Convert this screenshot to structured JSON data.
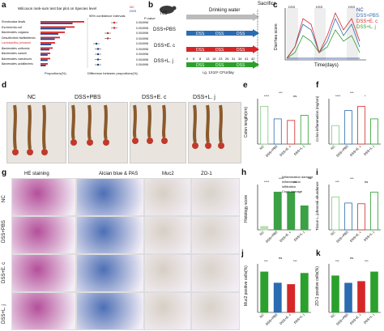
{
  "panel_labels": {
    "a": "a",
    "b": "b",
    "c": "c",
    "d": "d",
    "e": "e",
    "f": "f",
    "g": "g",
    "h": "h",
    "i": "i",
    "j": "j",
    "k": "k"
  },
  "panel_a": {
    "title": "Wilcoxon rank-sum test bar plot on Species level",
    "ci_title": "95% confidence intervals",
    "legend": [
      "NC",
      "DSS"
    ],
    "species": [
      "Romboutsia ilealis",
      "Escherichia coli",
      "Bacteroides vulgatus",
      "Desulfovibrio fairfieldensis",
      "Lactobacillus johnsonii",
      "Bacteroides uniformis",
      "Bacteroides sartorii",
      "Bacteroides caecimuris",
      "Bacteroides acidifaciens"
    ],
    "highlight_color": "#d62728",
    "xlabel_left": "Proportions(%)",
    "xlabel_right": "Difference between proportions(%)",
    "pvalue_label": "P-value",
    "pvalues": [
      "0.004998",
      "0.004998",
      "0.004998",
      "0.004998",
      "0.004998",
      "0.004998",
      "0.004998",
      "0.004998",
      "0.004998"
    ]
  },
  "panel_b": {
    "groups": [
      "NC",
      "DSS+PBS",
      "DSS+E. c",
      "DSS+L. j"
    ],
    "drinking": "Drinking water",
    "sacrifice": "Sacrifice",
    "dss_label": "DSS",
    "ticks": [
      "0",
      "5",
      "8",
      "13",
      "18",
      "23",
      "26",
      "31",
      "34",
      "41",
      "42"
    ],
    "gavage": "i.g. 1X10⁹ CFU/day"
  },
  "panel_c": {
    "ylabel": "Diarrhea score",
    "xlabel": "Time(days)",
    "dss_bands": [
      "DSS",
      "DSS",
      "DSS"
    ],
    "legend": [
      "NC",
      "DSS+PBS",
      "DSS+E. c",
      "DSS+L. j"
    ],
    "colors": [
      "#1f3f8f",
      "#2b6cb0",
      "#d62728",
      "#2ca02c"
    ]
  },
  "panel_d": {
    "labels": [
      "NC",
      "DSS+PBS",
      "DSS+E. c",
      "DSS+L. j"
    ]
  },
  "panel_e": {
    "ylabel": "Colon length(cm)",
    "categories": [
      "NC",
      "DSS+PBS",
      "DSS+E. c",
      "DSS+L. j"
    ],
    "values": [
      9.6,
      6.4,
      6.0,
      7.3
    ],
    "ylim": [
      0,
      10
    ],
    "sig": [
      "****",
      "***",
      "ns"
    ]
  },
  "panel_f": {
    "ylabel": "Colon inflammation (mg/cm)",
    "categories": [
      "NC",
      "DSS+PBS",
      "DSS+E. c",
      "DSS+L. j"
    ],
    "values": [
      22,
      40,
      45,
      30
    ],
    "ylim": [
      20,
      50
    ],
    "sig": [
      "****",
      "***",
      "*"
    ]
  },
  "panel_g": {
    "columns": [
      "HE staining",
      "Alcian blue & PAS",
      "Muc2",
      "ZO-1"
    ],
    "rows": [
      "NC",
      "DSS+PBS",
      "DSS+E. c",
      "DSS+L. j"
    ]
  },
  "panel_h": {
    "ylabel": "Histology score",
    "categories": [
      "NC",
      "DSS+PBS",
      "DSS+E. c",
      "DSS+L. j"
    ],
    "values": [
      1,
      11,
      11,
      7
    ],
    "legend": [
      "Inflammation damage",
      "Inflammation infiltration",
      "Crypt damage"
    ],
    "sig": [
      "****",
      "****",
      "ns",
      "***"
    ]
  },
  "panel_i": {
    "ylabel": "Tissue L. johnsonii abundance",
    "categories": [
      "NC",
      "DSS+PBS",
      "DSS+E. c",
      "DSS+L. j"
    ],
    "values": [
      4.8,
      3.9,
      3.8,
      5.5
    ],
    "sig": [
      "***",
      "***",
      "ns"
    ]
  },
  "panel_j": {
    "ylabel": "Muc2 positive cells(%)",
    "categories": [
      "NC",
      "DSS+PBS",
      "DSS+E. c",
      "DSS+L. j"
    ],
    "values": [
      58,
      42,
      40,
      56
    ],
    "sig": [
      "***",
      "ns",
      "***"
    ]
  },
  "panel_k": {
    "ylabel": "ZO-1 positive cells(%)",
    "categories": [
      "NC",
      "DSS+PBS",
      "DSS+E. c",
      "DSS+L. j"
    ],
    "values": [
      65,
      52,
      55,
      72
    ],
    "sig": [
      "***",
      "ns",
      "***"
    ]
  }
}
